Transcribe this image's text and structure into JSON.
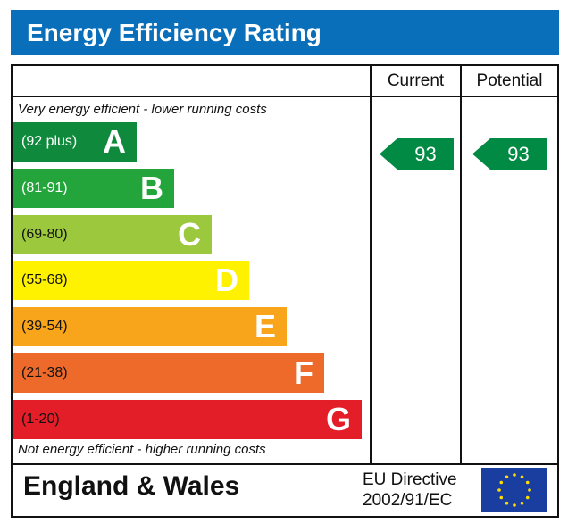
{
  "title": "Energy Efficiency Rating",
  "columns": {
    "current": "Current",
    "potential": "Potential"
  },
  "top_note": "Very energy efficient - lower running costs",
  "bottom_note": "Not energy efficient - higher running costs",
  "region": "England & Wales",
  "directive": {
    "line1": "EU Directive",
    "line2": "2002/91/EC"
  },
  "colors": {
    "header": "#0a6fba",
    "arrow": "#008a43"
  },
  "chart_data": {
    "type": "bar",
    "bands": [
      {
        "range": "(92 plus)",
        "letter": "A",
        "color": "#0f8a3c",
        "range_color": "#ffffff"
      },
      {
        "range": "(81-91)",
        "letter": "B",
        "color": "#23a53b",
        "range_color": "#ffffff"
      },
      {
        "range": "(69-80)",
        "letter": "C",
        "color": "#9bc83c",
        "range_color": "#111111"
      },
      {
        "range": "(55-68)",
        "letter": "D",
        "color": "#fff200",
        "range_color": "#111111"
      },
      {
        "range": "(39-54)",
        "letter": "E",
        "color": "#f9a51c",
        "range_color": "#111111"
      },
      {
        "range": "(21-38)",
        "letter": "F",
        "color": "#ee6a2b",
        "range_color": "#111111"
      },
      {
        "range": "(1-20)",
        "letter": "G",
        "color": "#e31e28",
        "range_color": "#111111"
      }
    ],
    "current": "93",
    "potential": "93"
  }
}
